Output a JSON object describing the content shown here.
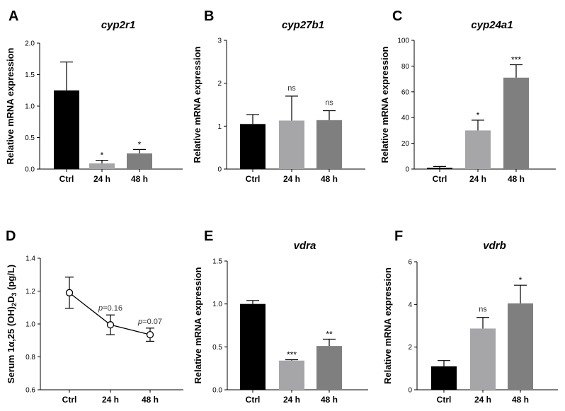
{
  "chart_data": [
    {
      "panel": "A",
      "type": "bar",
      "title": "cyp2r1",
      "ylabel": "Relative mRNA expression",
      "categories": [
        "Ctrl",
        "24 h",
        "48 h"
      ],
      "values": [
        1.25,
        0.09,
        0.25
      ],
      "errors": [
        0.45,
        0.05,
        0.06
      ],
      "significance": [
        "",
        "*",
        "*"
      ],
      "colors": [
        "#000000",
        "#a6a6a9",
        "#7f7f7f"
      ],
      "ylim": [
        0,
        2.0
      ],
      "yticks": [
        "0.0",
        "0.5",
        "1.0",
        "1.5",
        "2.0"
      ]
    },
    {
      "panel": "B",
      "type": "bar",
      "title": "cyp27b1",
      "ylabel": "Relative mRNA expression",
      "categories": [
        "Ctrl",
        "24 h",
        "48 h"
      ],
      "values": [
        1.05,
        1.13,
        1.14
      ],
      "errors": [
        0.22,
        0.57,
        0.22
      ],
      "significance": [
        "",
        "ns",
        "ns"
      ],
      "colors": [
        "#000000",
        "#a6a6a9",
        "#7f7f7f"
      ],
      "ylim": [
        0,
        3
      ],
      "yticks": [
        "0",
        "1",
        "2",
        "3"
      ]
    },
    {
      "panel": "C",
      "type": "bar",
      "title": "cyp24a1",
      "ylabel": "Relative mRNA expression",
      "categories": [
        "Ctrl",
        "24 h",
        "48 h"
      ],
      "values": [
        1,
        30,
        71
      ],
      "errors": [
        1,
        8,
        10
      ],
      "significance": [
        "",
        "*",
        "***"
      ],
      "colors": [
        "#000000",
        "#a6a6a9",
        "#7f7f7f"
      ],
      "ylim": [
        0,
        100
      ],
      "yticks": [
        "0",
        "20",
        "40",
        "60",
        "80",
        "100"
      ]
    },
    {
      "panel": "D",
      "type": "line",
      "title": "",
      "ylabel": "Serum 1α,25 (OH)2D3 (pg/L)",
      "categories": [
        "Ctrl",
        "24 h",
        "48 h"
      ],
      "values": [
        1.19,
        0.995,
        0.935
      ],
      "errors": [
        0.095,
        0.06,
        0.04
      ],
      "annotations": [
        "",
        "p=0.16",
        "p=0.07"
      ],
      "ylim": [
        0.6,
        1.4
      ],
      "yticks": [
        "0.6",
        "0.8",
        "1.0",
        "1.2",
        "1.4"
      ]
    },
    {
      "panel": "E",
      "type": "bar",
      "title": "vdra",
      "ylabel": "Relative mRNA expression",
      "categories": [
        "Ctrl",
        "24 h",
        "48 h"
      ],
      "values": [
        1.0,
        0.34,
        0.51
      ],
      "errors": [
        0.04,
        0.01,
        0.08
      ],
      "significance": [
        "",
        "***",
        "**"
      ],
      "colors": [
        "#000000",
        "#a6a6a9",
        "#7f7f7f"
      ],
      "ylim": [
        0,
        1.5
      ],
      "yticks": [
        "0.0",
        "0.5",
        "1.0",
        "1.5"
      ]
    },
    {
      "panel": "F",
      "type": "bar",
      "title": "vdrb",
      "ylabel": "Relative mRNA expression",
      "categories": [
        "Ctrl",
        "24 h",
        "48 h"
      ],
      "values": [
        1.1,
        2.87,
        4.05
      ],
      "errors": [
        0.27,
        0.52,
        0.85
      ],
      "significance": [
        "",
        "ns",
        "*"
      ],
      "colors": [
        "#000000",
        "#a6a6a9",
        "#7f7f7f"
      ],
      "ylim": [
        0,
        6
      ],
      "yticks": [
        "0",
        "2",
        "4",
        "6"
      ]
    }
  ]
}
